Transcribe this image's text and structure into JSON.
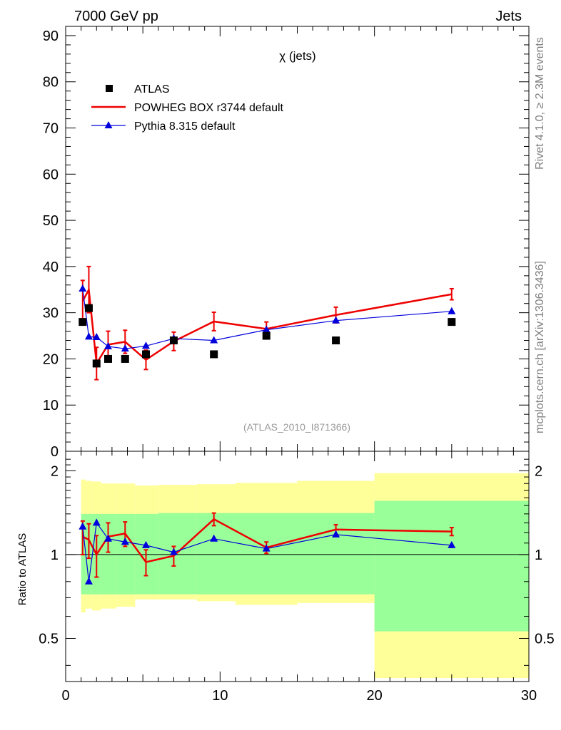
{
  "header": {
    "left": "7000 GeV pp",
    "right": "Jets"
  },
  "side_labels": {
    "top": "Rivet 4.1.0, ≥ 2.3M events",
    "bottom": "mcplots.cern.ch [arXiv:1306.3436]"
  },
  "colors": {
    "data": "#000000",
    "powheg": "#ee0000",
    "pythia": "#0000dd",
    "band_outer": "#ffff99",
    "band_inner": "#99ff99"
  },
  "chart_data": [
    {
      "type": "scatter",
      "title": "χ (jets)",
      "watermark": "(ATLAS_2010_I871366)",
      "xlim": [
        0,
        30
      ],
      "ylim": [
        0,
        92
      ],
      "yticks": [
        0,
        10,
        20,
        30,
        40,
        50,
        60,
        70,
        80,
        90
      ],
      "legend_position": "top-left",
      "series": [
        {
          "name": "ATLAS",
          "marker": "square",
          "x": [
            1.1,
            1.5,
            2.0,
            2.75,
            3.85,
            5.2,
            7.0,
            9.6,
            13.0,
            17.5,
            25.0
          ],
          "y": [
            28,
            31,
            19,
            20,
            20,
            21,
            24,
            21,
            25,
            24,
            28
          ]
        },
        {
          "name": "POWHEG BOX r3744 default",
          "marker": "line",
          "x": [
            1.1,
            1.5,
            2.0,
            2.75,
            3.85,
            5.2,
            7.0,
            9.6,
            13.0,
            17.5,
            25.0
          ],
          "y": [
            32.5,
            35.0,
            19.0,
            23.1,
            23.7,
            19.8,
            23.8,
            28.1,
            26.5,
            29.5,
            34.0
          ],
          "err": [
            4.5,
            5.0,
            3.5,
            2.9,
            2.5,
            2.1,
            2.0,
            2.0,
            1.5,
            1.7,
            1.2
          ]
        },
        {
          "name": "Pythia 8.315 default",
          "marker": "triangle",
          "x": [
            1.1,
            1.5,
            2.0,
            2.75,
            3.85,
            5.2,
            7.0,
            9.6,
            13.0,
            17.5,
            25.0
          ],
          "y": [
            35.2,
            24.8,
            24.7,
            22.7,
            22.2,
            22.8,
            24.4,
            24.0,
            26.3,
            28.3,
            30.3
          ],
          "err": [
            0.9,
            0.7,
            0.6,
            0.5,
            0.4,
            0.4,
            0.4,
            0.3,
            0.3,
            0.3,
            0.3
          ]
        }
      ]
    },
    {
      "type": "line",
      "ylabel": "Ratio to ATLAS",
      "xlim": [
        0,
        30
      ],
      "ylim": [
        0.35,
        2.35
      ],
      "yscale": "log",
      "xticks": [
        0,
        10,
        20,
        30
      ],
      "yticks": [
        0.5,
        1,
        2
      ],
      "reference_line": 1,
      "bands": {
        "edges": [
          1,
          1.3,
          1.7,
          2.3,
          3.3,
          4.5,
          6,
          8.5,
          11,
          15,
          20,
          30
        ],
        "outer_low": [
          0.62,
          0.64,
          0.63,
          0.64,
          0.65,
          0.69,
          0.69,
          0.68,
          0.66,
          0.67,
          0.36
        ],
        "outer_high": [
          1.86,
          1.84,
          1.83,
          1.8,
          1.8,
          1.77,
          1.78,
          1.79,
          1.81,
          1.84,
          1.96
        ],
        "inner_low": [
          0.72,
          0.72,
          0.72,
          0.72,
          0.72,
          0.72,
          0.72,
          0.72,
          0.72,
          0.72,
          0.53
        ],
        "inner_high": [
          1.4,
          1.4,
          1.4,
          1.4,
          1.4,
          1.4,
          1.41,
          1.41,
          1.41,
          1.41,
          1.56
        ]
      },
      "series": [
        {
          "name": "POWHEG BOX r3744 default",
          "x": [
            1.1,
            1.5,
            2.0,
            2.75,
            3.85,
            5.2,
            7.0,
            9.6,
            13.0,
            17.5,
            25.0
          ],
          "y": [
            1.16,
            1.13,
            1.0,
            1.16,
            1.19,
            0.94,
            0.99,
            1.34,
            1.06,
            1.23,
            1.21
          ],
          "err": [
            0.16,
            0.16,
            0.17,
            0.14,
            0.12,
            0.1,
            0.08,
            0.07,
            0.05,
            0.05,
            0.04
          ]
        },
        {
          "name": "Pythia 8.315 default",
          "x": [
            1.1,
            1.5,
            2.0,
            2.75,
            3.85,
            5.2,
            7.0,
            9.6,
            13.0,
            17.5,
            25.0
          ],
          "y": [
            1.26,
            0.8,
            1.3,
            1.14,
            1.11,
            1.08,
            1.02,
            1.14,
            1.05,
            1.18,
            1.08
          ],
          "err": [
            0.03,
            0.02,
            0.03,
            0.02,
            0.02,
            0.02,
            0.02,
            0.01,
            0.01,
            0.01,
            0.01
          ]
        }
      ]
    }
  ]
}
